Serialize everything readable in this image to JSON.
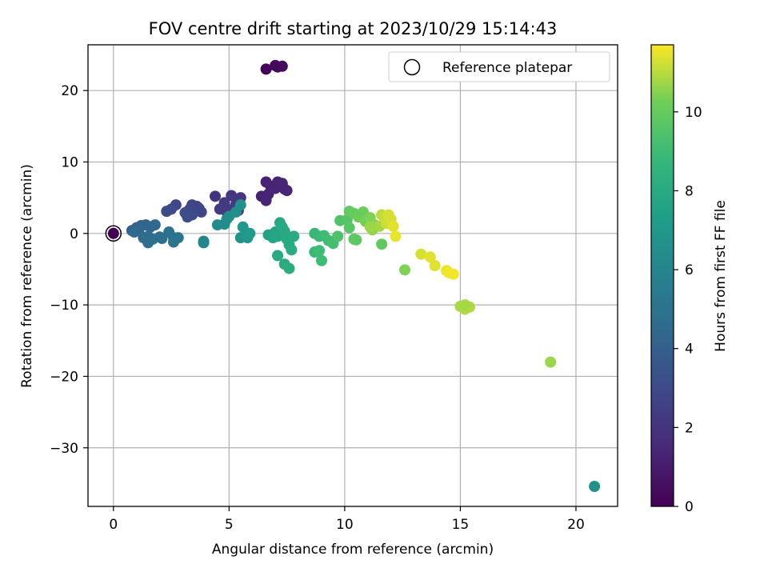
{
  "chart_data": {
    "type": "scatter",
    "title": "FOV centre drift starting at 2023/10/29 15:14:43",
    "xlabel": "Angular distance from reference (arcmin)",
    "ylabel": "Rotation from reference (arcmin)",
    "xlim": [
      -1.1,
      21.8
    ],
    "ylim": [
      -38.2,
      26.4
    ],
    "grid": true,
    "x_ticks": [
      0,
      5,
      10,
      15,
      20
    ],
    "y_ticks": [
      20,
      10,
      0,
      -10,
      -20,
      -30
    ],
    "x_tick_labels": [
      "0",
      "5",
      "10",
      "15",
      "20"
    ],
    "y_tick_labels": [
      "20",
      "10",
      "0",
      "−10",
      "−20",
      "−30"
    ],
    "legend": {
      "position": "top-right",
      "entries": [
        {
          "label": "Reference platepar",
          "marker": "open-circle"
        }
      ]
    },
    "colorbar": {
      "label": "Hours from first FF file",
      "range": [
        0,
        11.7
      ],
      "ticks": [
        0,
        2,
        4,
        6,
        8,
        10
      ],
      "tick_labels": [
        "0",
        "2",
        "4",
        "6",
        "8",
        "10"
      ],
      "colormap": "viridis"
    },
    "reference_point": {
      "x": 0,
      "y": 0
    },
    "points": [
      {
        "x": 0,
        "y": 0,
        "h": 0
      },
      {
        "x": 6.6,
        "y": 23.0,
        "h": 0.2
      },
      {
        "x": 7.0,
        "y": 23.5,
        "h": 0.3
      },
      {
        "x": 7.1,
        "y": 23.3,
        "h": 0.3
      },
      {
        "x": 7.3,
        "y": 23.4,
        "h": 0.4
      },
      {
        "x": 6.6,
        "y": 7.2,
        "h": 1.2
      },
      {
        "x": 6.8,
        "y": 6.6,
        "h": 1.3
      },
      {
        "x": 7.1,
        "y": 7.2,
        "h": 1.3
      },
      {
        "x": 7.3,
        "y": 7.0,
        "h": 1.4
      },
      {
        "x": 7.4,
        "y": 6.2,
        "h": 1.4
      },
      {
        "x": 7.5,
        "y": 6.0,
        "h": 1.4
      },
      {
        "x": 6.4,
        "y": 5.2,
        "h": 1.2
      },
      {
        "x": 6.6,
        "y": 4.6,
        "h": 1.3
      },
      {
        "x": 6.7,
        "y": 5.5,
        "h": 1.3
      },
      {
        "x": 7.0,
        "y": 6.3,
        "h": 1.4
      },
      {
        "x": 4.4,
        "y": 5.2,
        "h": 2.0
      },
      {
        "x": 5.1,
        "y": 5.3,
        "h": 2.1
      },
      {
        "x": 5.5,
        "y": 5.0,
        "h": 2.1
      },
      {
        "x": 4.8,
        "y": 4.3,
        "h": 2.2
      },
      {
        "x": 5.3,
        "y": 4.1,
        "h": 2.2
      },
      {
        "x": 4.6,
        "y": 3.4,
        "h": 2.3
      },
      {
        "x": 4.9,
        "y": 3.0,
        "h": 2.3
      },
      {
        "x": 5.2,
        "y": 3.5,
        "h": 2.4
      },
      {
        "x": 5.4,
        "y": 3.2,
        "h": 2.4
      },
      {
        "x": 2.7,
        "y": 4.0,
        "h": 2.9
      },
      {
        "x": 2.5,
        "y": 3.4,
        "h": 3.0
      },
      {
        "x": 2.3,
        "y": 3.1,
        "h": 3.0
      },
      {
        "x": 3.4,
        "y": 4.0,
        "h": 2.8
      },
      {
        "x": 3.6,
        "y": 3.8,
        "h": 2.8
      },
      {
        "x": 3.3,
        "y": 3.4,
        "h": 2.9
      },
      {
        "x": 3.5,
        "y": 3.1,
        "h": 2.9
      },
      {
        "x": 3.8,
        "y": 3.0,
        "h": 2.8
      },
      {
        "x": 3.7,
        "y": 3.5,
        "h": 2.8
      },
      {
        "x": 3.2,
        "y": 2.3,
        "h": 3.1
      },
      {
        "x": 3.4,
        "y": 2.6,
        "h": 3.0
      },
      {
        "x": 3.1,
        "y": 2.9,
        "h": 3.1
      },
      {
        "x": 0.8,
        "y": 0.4,
        "h": 4.0
      },
      {
        "x": 1.0,
        "y": 0.8,
        "h": 4.1
      },
      {
        "x": 1.2,
        "y": 1.1,
        "h": 4.2
      },
      {
        "x": 1.4,
        "y": 1.2,
        "h": 4.3
      },
      {
        "x": 1.6,
        "y": 0.9,
        "h": 4.3
      },
      {
        "x": 1.8,
        "y": 1.2,
        "h": 4.4
      },
      {
        "x": 1.1,
        "y": 0.5,
        "h": 4.4
      },
      {
        "x": 0.9,
        "y": 0.2,
        "h": 4.5
      },
      {
        "x": 1.5,
        "y": -0.4,
        "h": 4.6
      },
      {
        "x": 1.7,
        "y": -0.8,
        "h": 4.7
      },
      {
        "x": 1.5,
        "y": -1.3,
        "h": 4.7
      },
      {
        "x": 2.1,
        "y": -0.7,
        "h": 4.8
      },
      {
        "x": 2.0,
        "y": -0.5,
        "h": 4.8
      },
      {
        "x": 2.4,
        "y": 0.2,
        "h": 4.9
      },
      {
        "x": 2.6,
        "y": -0.6,
        "h": 4.9
      },
      {
        "x": 2.6,
        "y": -1.2,
        "h": 5.0
      },
      {
        "x": 2.8,
        "y": -0.6,
        "h": 5.0
      },
      {
        "x": 1.3,
        "y": -0.6,
        "h": 4.6
      },
      {
        "x": 3.9,
        "y": -1.1,
        "h": 6.0
      },
      {
        "x": 3.9,
        "y": -1.3,
        "h": 6.0
      },
      {
        "x": 4.5,
        "y": 1.2,
        "h": 6.3
      },
      {
        "x": 4.8,
        "y": 1.3,
        "h": 6.3
      },
      {
        "x": 4.9,
        "y": 2.0,
        "h": 6.4
      },
      {
        "x": 5.0,
        "y": 2.4,
        "h": 6.4
      },
      {
        "x": 5.3,
        "y": 3.0,
        "h": 6.5
      },
      {
        "x": 5.5,
        "y": 4.0,
        "h": 6.6
      },
      {
        "x": 5.5,
        "y": -0.6,
        "h": 6.8
      },
      {
        "x": 5.7,
        "y": -0.3,
        "h": 6.9
      },
      {
        "x": 5.6,
        "y": 0.9,
        "h": 7.0
      },
      {
        "x": 5.8,
        "y": -0.6,
        "h": 7.0
      },
      {
        "x": 5.9,
        "y": 0.0,
        "h": 7.1
      },
      {
        "x": 20.8,
        "y": -35.4,
        "h": 6.6
      },
      {
        "x": 6.7,
        "y": -0.2,
        "h": 7.6
      },
      {
        "x": 6.9,
        "y": -0.6,
        "h": 7.7
      },
      {
        "x": 7.0,
        "y": 0.2,
        "h": 7.7
      },
      {
        "x": 7.1,
        "y": -0.4,
        "h": 7.8
      },
      {
        "x": 7.2,
        "y": 1.5,
        "h": 7.9
      },
      {
        "x": 7.3,
        "y": 0.9,
        "h": 7.9
      },
      {
        "x": 7.4,
        "y": 0.3,
        "h": 7.9
      },
      {
        "x": 7.5,
        "y": -0.8,
        "h": 8.0
      },
      {
        "x": 7.6,
        "y": -1.6,
        "h": 8.0
      },
      {
        "x": 7.7,
        "y": -2.3,
        "h": 8.1
      },
      {
        "x": 7.1,
        "y": -3.1,
        "h": 8.0
      },
      {
        "x": 7.4,
        "y": -4.3,
        "h": 8.1
      },
      {
        "x": 7.6,
        "y": -4.9,
        "h": 8.2
      },
      {
        "x": 7.8,
        "y": -0.4,
        "h": 8.1
      },
      {
        "x": 8.7,
        "y": 0.0,
        "h": 8.8
      },
      {
        "x": 8.9,
        "y": -0.4,
        "h": 8.9
      },
      {
        "x": 9.1,
        "y": -0.3,
        "h": 9.0
      },
      {
        "x": 9.3,
        "y": -1.0,
        "h": 9.1
      },
      {
        "x": 9.5,
        "y": -1.4,
        "h": 9.2
      },
      {
        "x": 8.7,
        "y": -2.6,
        "h": 8.9
      },
      {
        "x": 8.9,
        "y": -2.4,
        "h": 9.0
      },
      {
        "x": 9.0,
        "y": -3.8,
        "h": 9.0
      },
      {
        "x": 9.7,
        "y": -0.4,
        "h": 9.4
      },
      {
        "x": 9.8,
        "y": 1.8,
        "h": 9.5
      },
      {
        "x": 10.1,
        "y": 1.9,
        "h": 9.6
      },
      {
        "x": 10.2,
        "y": 0.8,
        "h": 9.7
      },
      {
        "x": 10.4,
        "y": -0.8,
        "h": 9.8
      },
      {
        "x": 10.5,
        "y": -0.9,
        "h": 9.8
      },
      {
        "x": 10.2,
        "y": 3.1,
        "h": 9.9
      },
      {
        "x": 10.4,
        "y": 2.8,
        "h": 10.0
      },
      {
        "x": 10.6,
        "y": 2.3,
        "h": 10.1
      },
      {
        "x": 10.8,
        "y": 3.0,
        "h": 10.1
      },
      {
        "x": 10.9,
        "y": 1.7,
        "h": 10.3
      },
      {
        "x": 11.1,
        "y": 2.2,
        "h": 10.4
      },
      {
        "x": 11.3,
        "y": 1.2,
        "h": 10.5
      },
      {
        "x": 11.2,
        "y": 0.5,
        "h": 10.6
      },
      {
        "x": 11.5,
        "y": 1.0,
        "h": 10.8
      },
      {
        "x": 11.6,
        "y": 2.6,
        "h": 11.0
      },
      {
        "x": 11.7,
        "y": 2.3,
        "h": 11.1
      },
      {
        "x": 11.8,
        "y": 1.4,
        "h": 11.2
      },
      {
        "x": 11.9,
        "y": 2.6,
        "h": 11.3
      },
      {
        "x": 12.0,
        "y": 2.0,
        "h": 11.3
      },
      {
        "x": 12.1,
        "y": 1.0,
        "h": 11.4
      },
      {
        "x": 12.2,
        "y": -0.4,
        "h": 11.5
      },
      {
        "x": 11.6,
        "y": -1.5,
        "h": 9.9
      },
      {
        "x": 11.1,
        "y": 0.9,
        "h": 10.7
      },
      {
        "x": 12.6,
        "y": -5.1,
        "h": 10.4
      },
      {
        "x": 13.3,
        "y": -2.9,
        "h": 11.3
      },
      {
        "x": 13.7,
        "y": -3.3,
        "h": 11.4
      },
      {
        "x": 13.9,
        "y": -4.5,
        "h": 11.4
      },
      {
        "x": 14.4,
        "y": -5.2,
        "h": 11.5
      },
      {
        "x": 14.5,
        "y": -5.5,
        "h": 11.6
      },
      {
        "x": 14.7,
        "y": -5.7,
        "h": 11.6
      },
      {
        "x": 15.0,
        "y": -10.2,
        "h": 10.8
      },
      {
        "x": 15.2,
        "y": -10.6,
        "h": 10.9
      },
      {
        "x": 15.4,
        "y": -10.3,
        "h": 10.9
      },
      {
        "x": 15.2,
        "y": -10.0,
        "h": 10.8
      },
      {
        "x": 18.9,
        "y": -18.0,
        "h": 10.7
      }
    ]
  }
}
